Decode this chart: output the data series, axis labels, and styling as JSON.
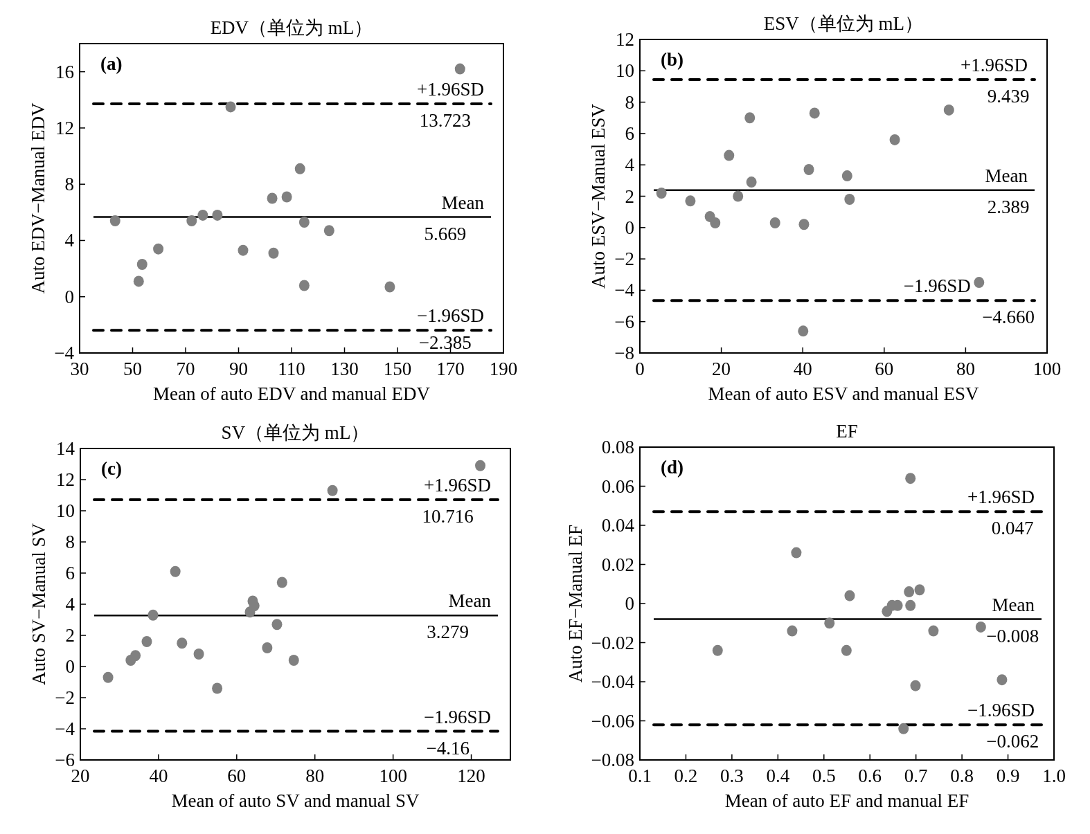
{
  "chart_data": [
    {
      "type": "scatter",
      "title": "EDV（单位为 mL）",
      "xlabel": "Mean of auto EDV and manual EDV",
      "ylabel": "Auto EDV−Manual EDV",
      "color": "#808080",
      "marker": "circle",
      "grid": false,
      "x": [
        43.4,
        52.3,
        53.6,
        59.7,
        72.3,
        76.5,
        82.0,
        87.0,
        91.7,
        102.7,
        103.2,
        108.2,
        113.2,
        114.8,
        114.8,
        124.2,
        147.1,
        173.6
      ],
      "values": [
        5.4,
        1.1,
        2.3,
        3.4,
        5.4,
        5.8,
        5.8,
        13.5,
        3.3,
        7.0,
        3.1,
        7.1,
        9.1,
        5.3,
        0.8,
        4.7,
        0.7,
        16.2
      ],
      "xlim": [
        30,
        190
      ],
      "xticks": [
        30,
        50,
        70,
        90,
        110,
        130,
        150,
        170,
        190
      ],
      "ylim": [
        -4,
        18
      ],
      "yticks": [
        -4,
        0,
        4,
        8,
        12,
        16
      ],
      "ref_lines": [
        {
          "axis": "y",
          "value": 13.723,
          "label": "+1.96SD",
          "line_style": "dashed",
          "color": "#000000"
        },
        {
          "axis": "y",
          "value": 5.669,
          "label": "Mean",
          "line_style": "solid",
          "color": "#000000"
        },
        {
          "axis": "y",
          "value": -2.385,
          "label": "−1.96SD",
          "line_style": "dashed",
          "color": "#000000"
        }
      ],
      "annotations": [
        "(a)",
        {
          "text": "13.723",
          "x": 168,
          "y": 13.723
        },
        {
          "text": "5.669",
          "x": 168,
          "y": 5.669
        },
        {
          "text": "−2.385",
          "x": 168,
          "y": -2.385
        }
      ]
    },
    {
      "type": "scatter",
      "title": "ESV（单位为 mL）",
      "xlabel": "Mean of auto ESV and manual ESV",
      "ylabel": "Auto ESV−Manual ESV",
      "color": "#808080",
      "marker": "circle",
      "grid": false,
      "x": [
        5.3,
        12.4,
        17.2,
        18.5,
        21.9,
        24.1,
        27.0,
        27.4,
        33.2,
        40.3,
        41.5,
        42.9,
        50.9,
        51.5,
        62.6,
        75.9,
        83.3,
        40.1
      ],
      "values": [
        2.2,
        1.7,
        0.7,
        0.3,
        4.6,
        2.0,
        7.0,
        2.9,
        0.3,
        0.2,
        3.7,
        7.3,
        3.3,
        1.8,
        5.6,
        7.5,
        -3.5,
        -6.6
      ],
      "xlim": [
        0,
        100
      ],
      "xticks": [
        0,
        20,
        40,
        60,
        80,
        100
      ],
      "ylim": [
        -8,
        12
      ],
      "yticks": [
        -8,
        -6,
        -4,
        -2,
        0,
        2,
        4,
        6,
        8,
        10,
        12
      ],
      "ref_lines": [
        {
          "axis": "y",
          "value": 9.439,
          "label": "+1.96SD",
          "line_style": "dashed",
          "color": "#000000"
        },
        {
          "axis": "y",
          "value": 2.389,
          "label": "Mean",
          "line_style": "solid",
          "color": "#000000"
        },
        {
          "axis": "y",
          "value": -4.66,
          "label": "−1.96SD",
          "line_style": "dashed",
          "color": "#000000"
        }
      ],
      "annotations": [
        "(b)",
        {
          "text": "9.439",
          "x": 90.5,
          "y": 9.439
        },
        {
          "text": "2.389",
          "x": 90.5,
          "y": 2.389
        },
        {
          "text": "−4.660",
          "x": 90.5,
          "y": -4.66
        }
      ]
    },
    {
      "type": "scatter",
      "title": "SV（单位为 mL）",
      "xlabel": "Mean of auto SV and manual SV",
      "ylabel": "Auto SV−Manual SV",
      "color": "#808080",
      "marker": "circle",
      "grid": false,
      "x": [
        27.1,
        32.9,
        34.1,
        37.0,
        38.6,
        44.3,
        46.0,
        50.3,
        55.0,
        63.4,
        64.1,
        64.5,
        67.8,
        70.3,
        71.6,
        74.6,
        84.5,
        122.3
      ],
      "values": [
        -0.7,
        0.4,
        0.7,
        1.6,
        3.3,
        6.1,
        1.5,
        0.8,
        -1.4,
        3.5,
        4.2,
        3.9,
        1.2,
        2.7,
        5.4,
        0.4,
        11.3,
        12.9
      ],
      "xlim": [
        20,
        130
      ],
      "xticks": [
        20,
        40,
        60,
        80,
        100,
        120
      ],
      "ylim": [
        -6,
        14
      ],
      "yticks": [
        -6,
        -4,
        -2,
        0,
        2,
        4,
        6,
        8,
        10,
        12,
        14
      ],
      "ref_lines": [
        {
          "axis": "y",
          "value": 10.716,
          "label": "+1.96SD",
          "line_style": "dashed",
          "color": "#000000"
        },
        {
          "axis": "y",
          "value": 3.279,
          "label": "Mean",
          "line_style": "solid",
          "color": "#000000"
        },
        {
          "axis": "y",
          "value": -4.16,
          "label": "−1.96SD",
          "line_style": "dashed",
          "color": "#000000"
        }
      ],
      "annotations": [
        "(c)",
        {
          "text": "10.716",
          "x": 114,
          "y": 10.716
        },
        {
          "text": "3.279",
          "x": 114,
          "y": 3.279
        },
        {
          "text": "−4.16",
          "x": 114,
          "y": -4.16
        }
      ]
    },
    {
      "type": "scatter",
      "title": "EF",
      "xlabel": "Mean of auto EF and manual EF",
      "ylabel": "Auto EF−Manual EF",
      "color": "#808080",
      "marker": "circle",
      "grid": false,
      "x": [
        0.269,
        0.431,
        0.44,
        0.512,
        0.549,
        0.556,
        0.637,
        0.648,
        0.66,
        0.685,
        0.688,
        0.688,
        0.699,
        0.708,
        0.673,
        0.738,
        0.841,
        0.887
      ],
      "values": [
        -0.024,
        -0.014,
        0.026,
        -0.01,
        -0.024,
        0.004,
        -0.004,
        -0.001,
        -0.001,
        0.006,
        -0.001,
        0.064,
        -0.042,
        0.007,
        -0.064,
        -0.014,
        -0.012,
        -0.039
      ],
      "xlim": [
        0.1,
        1.0
      ],
      "xticks": [
        0.1,
        0.2,
        0.3,
        0.4,
        0.5,
        0.6,
        0.7,
        0.8,
        0.9,
        {
          "value": 1.0,
          "label": "1.0"
        }
      ],
      "ylim": [
        -0.08,
        0.08
      ],
      "yticks": [
        -0.08,
        -0.06,
        -0.04,
        -0.02,
        0,
        0.02,
        0.04,
        0.06,
        0.08
      ],
      "ref_lines": [
        {
          "axis": "y",
          "value": 0.047,
          "label": "+1.96SD",
          "line_style": "dashed",
          "color": "#000000"
        },
        {
          "axis": "y",
          "value": -0.008,
          "label": "Mean",
          "line_style": "solid",
          "color": "#000000"
        },
        {
          "axis": "y",
          "value": -0.062,
          "label": "−1.96SD",
          "line_style": "dashed",
          "color": "#000000"
        }
      ],
      "annotations": [
        "(d)",
        {
          "text": "0.047",
          "x": 0.91,
          "y": 0.047
        },
        {
          "text": "−0.008",
          "x": 0.91,
          "y": -0.008
        },
        {
          "text": "−0.062",
          "x": 0.91,
          "y": -0.062
        }
      ]
    }
  ]
}
